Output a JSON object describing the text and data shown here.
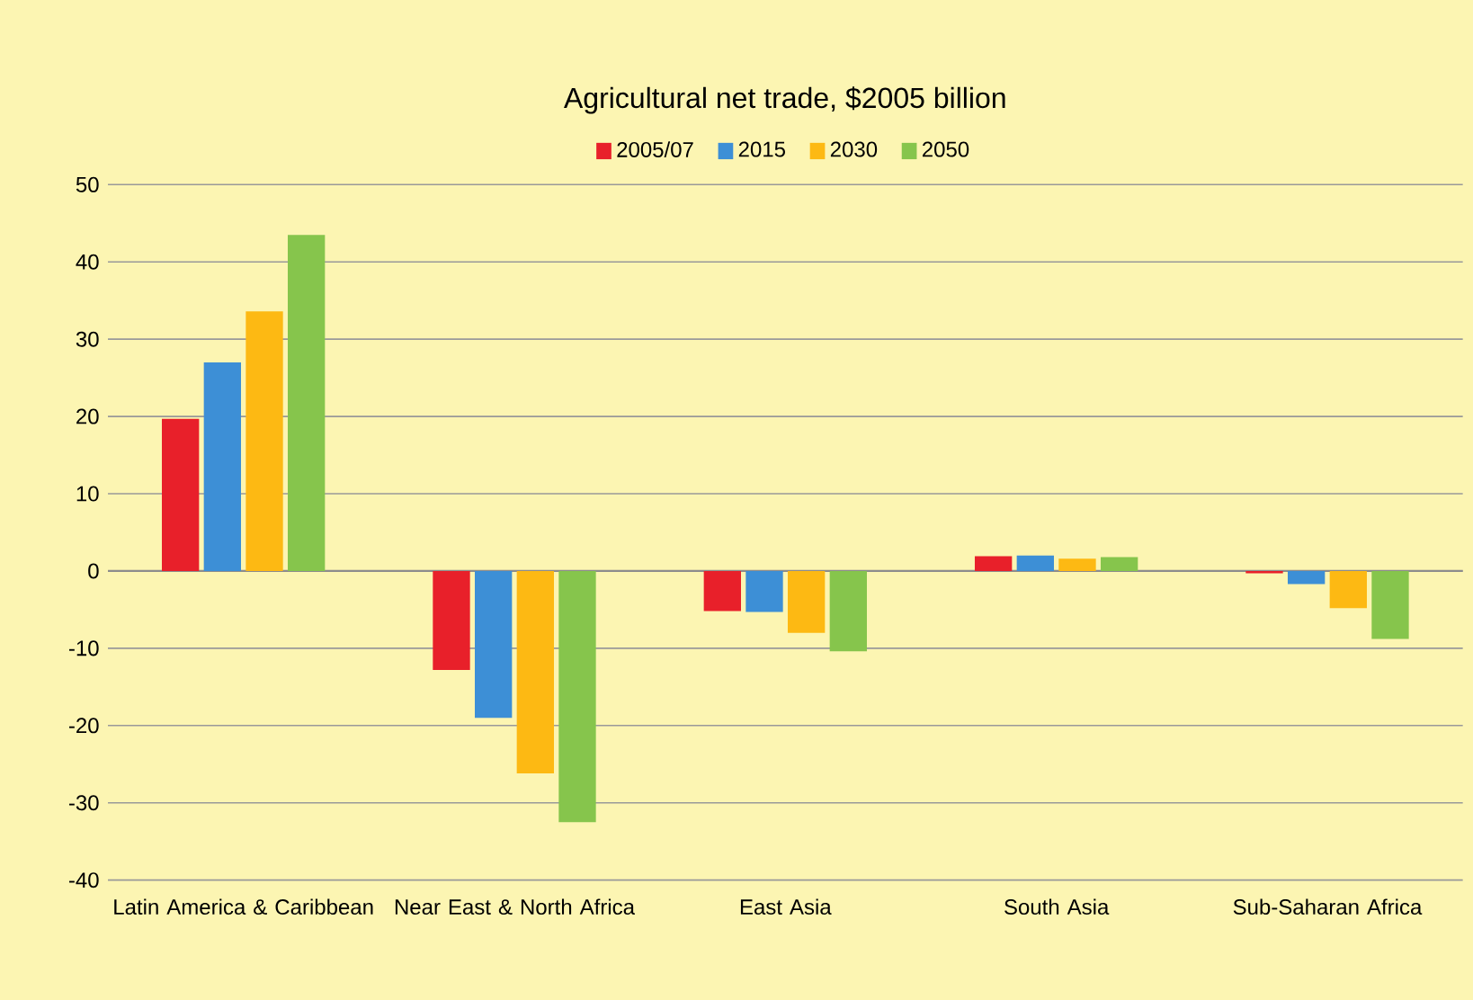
{
  "chart_data": {
    "type": "bar",
    "title": "Agricultural net trade, $2005 billion",
    "categories": [
      "Latin America & Caribbean",
      "Near East & North Africa",
      "East Asia",
      "South Asia",
      "Sub-Saharan Africa"
    ],
    "series": [
      {
        "name": "2005/07",
        "color": "#e8202a",
        "values": [
          19.7,
          -12.8,
          -5.2,
          1.9,
          -0.3
        ]
      },
      {
        "name": "2015",
        "color": "#3d8fd6",
        "values": [
          27.0,
          -19.0,
          -5.3,
          2.0,
          -1.7
        ]
      },
      {
        "name": "2030",
        "color": "#fdb913",
        "values": [
          33.6,
          -26.2,
          -8.0,
          1.6,
          -4.8
        ]
      },
      {
        "name": "2050",
        "color": "#86c54c",
        "values": [
          43.5,
          -32.5,
          -10.4,
          1.8,
          -8.8
        ]
      }
    ],
    "ylim": [
      -40,
      50
    ],
    "yticks": [
      -40,
      -30,
      -20,
      -10,
      0,
      10,
      20,
      30,
      40,
      50
    ],
    "grid": "y",
    "legend": "top"
  }
}
